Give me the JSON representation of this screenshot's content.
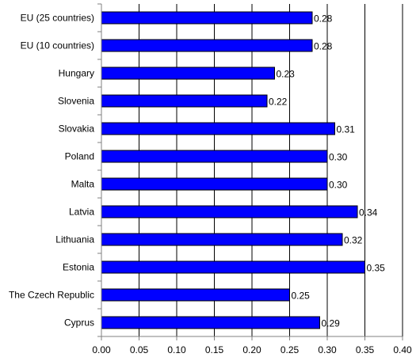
{
  "chart_data": {
    "type": "bar",
    "orientation": "horizontal",
    "categories": [
      "EU (25 countries)",
      "EU (10 countries)",
      "Hungary",
      "Slovenia",
      "Slovakia",
      "Poland",
      "Malta",
      "Latvia",
      "Lithuania",
      "Estonia",
      "The Czech Republic",
      "Cyprus"
    ],
    "values": [
      0.28,
      0.28,
      0.23,
      0.22,
      0.31,
      0.3,
      0.3,
      0.34,
      0.32,
      0.35,
      0.25,
      0.29
    ],
    "value_labels": [
      "0.28",
      "0.28",
      "0.23",
      "0.22",
      "0.31",
      "0.30",
      "0.30",
      "0.34",
      "0.32",
      "0.35",
      "0.25",
      "0.29"
    ],
    "xlim": [
      0,
      0.4
    ],
    "x_ticks": [
      "0.00",
      "0.05",
      "0.10",
      "0.15",
      "0.20",
      "0.25",
      "0.30",
      "0.35",
      "0.40"
    ],
    "grid": true,
    "legend": "none",
    "title": "",
    "xlabel": "",
    "ylabel": "",
    "colors": {
      "bar_fill": "#0000FF",
      "bar_stroke": "#000000",
      "grid": "#000000",
      "axis": "#808080"
    }
  }
}
